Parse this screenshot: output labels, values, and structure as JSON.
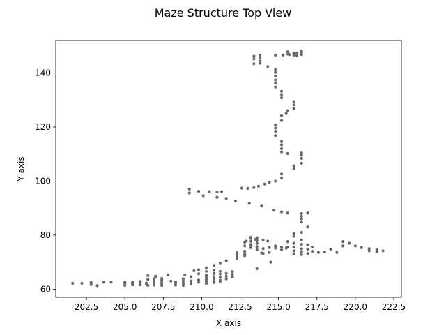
{
  "chart_data": {
    "type": "scatter",
    "title": "Maze Structure Top View",
    "xlabel": "X axis",
    "ylabel": "Y axis",
    "xlim": [
      200.5,
      223.0
    ],
    "ylim": [
      57.0,
      152.0
    ],
    "xticks": [
      202.5,
      205.0,
      207.5,
      210.0,
      212.5,
      215.0,
      217.5,
      220.0,
      222.5
    ],
    "xtick_labels": [
      "202.5",
      "205.0",
      "207.5",
      "210.0",
      "212.5",
      "215.0",
      "217.5",
      "220.0",
      "222.5"
    ],
    "yticks": [
      60,
      80,
      100,
      120,
      140
    ],
    "ytick_labels": [
      "60",
      "80",
      "100",
      "120",
      "140"
    ],
    "grid": false,
    "marker_color": "#666666",
    "series": [
      {
        "points": [
          [
            201.6,
            62.2
          ],
          [
            202.2,
            62.2
          ],
          [
            202.8,
            62.5
          ],
          [
            202.8,
            61.7
          ],
          [
            203.2,
            61.3
          ],
          [
            203.6,
            62.6
          ],
          [
            204.1,
            62.6
          ],
          [
            205.0,
            62.6
          ],
          [
            205.0,
            61.4
          ],
          [
            205.5,
            62.6
          ],
          [
            205.5,
            61.6
          ],
          [
            206.0,
            62.8
          ],
          [
            206.0,
            61.6
          ],
          [
            206.4,
            61.8
          ],
          [
            206.4,
            62.3
          ],
          [
            206.9,
            63.0
          ],
          [
            206.9,
            62.2
          ],
          [
            206.9,
            61.5
          ],
          [
            207.4,
            63.0
          ],
          [
            207.4,
            62.1
          ],
          [
            207.4,
            61.4
          ],
          [
            208.0,
            63.0
          ],
          [
            208.3,
            62.7
          ],
          [
            208.3,
            61.5
          ],
          [
            208.8,
            63.0
          ],
          [
            208.8,
            62.1
          ],
          [
            208.8,
            61.4
          ],
          [
            209.3,
            63.0
          ],
          [
            209.3,
            62.0
          ],
          [
            209.8,
            63.4
          ],
          [
            209.8,
            62.6
          ],
          [
            210.3,
            63.7
          ],
          [
            210.3,
            62.9
          ],
          [
            210.3,
            62.2
          ],
          [
            205.0,
            62.2
          ],
          [
            205.5,
            62.2
          ],
          [
            206.0,
            62.2
          ],
          [
            206.5,
            61.4
          ],
          [
            206.5,
            63.6
          ],
          [
            206.9,
            63.8
          ],
          [
            207.0,
            64.5
          ],
          [
            207.4,
            64.0
          ],
          [
            207.4,
            63.4
          ],
          [
            207.8,
            65.3
          ],
          [
            208.3,
            62.2
          ],
          [
            208.8,
            63.8
          ],
          [
            209.3,
            62.7
          ],
          [
            206.5,
            65.0
          ],
          [
            207.0,
            64.8
          ],
          [
            208.9,
            65.3
          ],
          [
            209.3,
            64.6
          ],
          [
            209.5,
            66.8
          ],
          [
            209.8,
            67.2
          ],
          [
            209.8,
            65.7
          ],
          [
            210.3,
            67.9
          ],
          [
            210.3,
            66.6
          ],
          [
            210.3,
            65.2
          ],
          [
            210.8,
            68.8
          ],
          [
            210.8,
            67.0
          ],
          [
            210.8,
            65.8
          ],
          [
            210.8,
            64.6
          ],
          [
            210.8,
            63.5
          ],
          [
            211.2,
            69.7
          ],
          [
            211.2,
            66.6
          ],
          [
            211.2,
            65.6
          ],
          [
            211.2,
            64.4
          ],
          [
            211.2,
            63.3
          ],
          [
            211.6,
            70.5
          ],
          [
            211.6,
            65.8
          ],
          [
            211.6,
            64.8
          ],
          [
            212.0,
            66.5
          ],
          [
            212.0,
            65.5
          ],
          [
            212.0,
            64.5
          ],
          [
            210.3,
            64.5
          ],
          [
            210.3,
            63.6
          ],
          [
            210.8,
            62.5
          ],
          [
            211.2,
            62.8
          ],
          [
            211.6,
            63.8
          ],
          [
            212.3,
            71.4
          ],
          [
            212.3,
            72.6
          ],
          [
            212.3,
            73.5
          ],
          [
            212.8,
            76.0
          ],
          [
            212.8,
            77.4
          ],
          [
            212.8,
            74.0
          ],
          [
            212.8,
            73.0
          ],
          [
            213.2,
            76.5
          ],
          [
            213.2,
            77.7
          ],
          [
            213.2,
            78.8
          ],
          [
            213.2,
            75.4
          ],
          [
            213.6,
            77.0
          ],
          [
            213.6,
            78.0
          ],
          [
            213.6,
            79.0
          ],
          [
            213.6,
            75.8
          ],
          [
            213.6,
            74.6
          ],
          [
            214.0,
            75.0
          ],
          [
            214.0,
            73.2
          ],
          [
            214.4,
            75.4
          ],
          [
            214.4,
            73.6
          ],
          [
            214.8,
            76.0
          ],
          [
            214.8,
            75.2
          ],
          [
            215.2,
            75.6
          ],
          [
            215.2,
            74.6
          ],
          [
            215.5,
            75.2
          ],
          [
            216.0,
            77.0
          ],
          [
            216.0,
            75.6
          ],
          [
            216.0,
            74.2
          ],
          [
            216.0,
            73.0
          ],
          [
            216.5,
            78.2
          ],
          [
            216.5,
            76.6
          ],
          [
            216.5,
            74.9
          ],
          [
            216.5,
            73.8
          ],
          [
            216.5,
            72.8
          ],
          [
            216.9,
            76.4
          ],
          [
            216.9,
            74.8
          ],
          [
            216.9,
            73.2
          ],
          [
            217.2,
            75.6
          ],
          [
            217.2,
            74.0
          ],
          [
            217.6,
            73.6
          ],
          [
            218.0,
            73.8
          ],
          [
            218.4,
            74.8
          ],
          [
            218.8,
            73.6
          ],
          [
            219.2,
            77.6
          ],
          [
            219.2,
            76.0
          ],
          [
            219.6,
            77.0
          ],
          [
            220.0,
            76.0
          ],
          [
            220.4,
            75.4
          ],
          [
            220.9,
            75.0
          ],
          [
            220.9,
            74.2
          ],
          [
            221.4,
            74.6
          ],
          [
            221.4,
            73.9
          ],
          [
            221.8,
            74.2
          ],
          [
            213.9,
            73.4
          ],
          [
            214.5,
            70.0
          ],
          [
            213.6,
            67.6
          ],
          [
            215.6,
            75.6
          ],
          [
            215.6,
            77.6
          ],
          [
            216.0,
            80.6
          ],
          [
            216.0,
            79.6
          ],
          [
            216.5,
            81.0
          ],
          [
            212.8,
            72.4
          ],
          [
            212.3,
            71.8
          ],
          [
            212.9,
            77.8
          ],
          [
            213.2,
            79.2
          ],
          [
            213.5,
            78.4
          ],
          [
            214.0,
            78.2
          ],
          [
            214.3,
            77.8
          ],
          [
            216.5,
            86.0
          ],
          [
            216.5,
            87.0
          ],
          [
            216.5,
            88.0
          ],
          [
            216.5,
            84.8
          ],
          [
            216.9,
            88.2
          ],
          [
            216.9,
            83.0
          ],
          [
            209.2,
            97.0
          ],
          [
            209.2,
            95.6
          ],
          [
            209.8,
            96.2
          ],
          [
            210.1,
            94.6
          ],
          [
            210.5,
            96.1
          ],
          [
            211.0,
            96.0
          ],
          [
            211.0,
            94.0
          ],
          [
            211.3,
            96.1
          ],
          [
            211.6,
            93.6
          ],
          [
            212.2,
            92.6
          ],
          [
            212.6,
            97.4
          ],
          [
            213.0,
            97.3
          ],
          [
            213.4,
            97.6
          ],
          [
            213.7,
            98.1
          ],
          [
            214.1,
            98.9
          ],
          [
            214.4,
            99.6
          ],
          [
            214.8,
            100.0
          ],
          [
            215.2,
            101.2
          ],
          [
            215.2,
            102.6
          ],
          [
            213.1,
            91.8
          ],
          [
            213.9,
            90.8
          ],
          [
            214.7,
            89.2
          ],
          [
            215.2,
            88.6
          ],
          [
            215.6,
            88.2
          ],
          [
            215.2,
            110.8
          ],
          [
            215.2,
            112.0
          ],
          [
            215.2,
            113.4
          ],
          [
            215.2,
            114.6
          ],
          [
            215.6,
            110.2
          ],
          [
            216.0,
            104.6
          ],
          [
            216.0,
            105.6
          ],
          [
            216.5,
            106.6
          ],
          [
            216.5,
            108.4
          ],
          [
            216.5,
            109.6
          ],
          [
            216.5,
            110.4
          ],
          [
            214.8,
            116.8
          ],
          [
            214.8,
            118.4
          ],
          [
            214.8,
            119.6
          ],
          [
            214.8,
            120.8
          ],
          [
            215.2,
            122.4
          ],
          [
            215.2,
            124.2
          ],
          [
            215.5,
            125.0
          ],
          [
            215.6,
            126.0
          ],
          [
            216.0,
            126.8
          ],
          [
            216.0,
            128.2
          ],
          [
            216.0,
            129.4
          ],
          [
            215.2,
            130.8
          ],
          [
            215.2,
            132.0
          ],
          [
            215.2,
            133.2
          ],
          [
            214.8,
            134.8
          ],
          [
            214.8,
            136.2
          ],
          [
            214.8,
            137.4
          ],
          [
            214.8,
            138.8
          ],
          [
            214.8,
            140.2
          ],
          [
            214.8,
            141.2
          ],
          [
            214.3,
            142.4
          ],
          [
            213.8,
            143.6
          ],
          [
            213.4,
            143.4
          ],
          [
            213.4,
            145.2
          ],
          [
            213.4,
            146.2
          ],
          [
            213.8,
            144.4
          ],
          [
            213.8,
            145.6
          ],
          [
            213.8,
            146.6
          ],
          [
            214.8,
            146.6
          ],
          [
            215.3,
            146.6
          ],
          [
            215.6,
            147.0
          ],
          [
            215.6,
            147.8
          ],
          [
            215.7,
            146.8
          ],
          [
            216.0,
            146.6
          ],
          [
            216.0,
            147.2
          ],
          [
            216.2,
            146.4
          ],
          [
            216.2,
            147.4
          ],
          [
            216.5,
            146.8
          ],
          [
            216.5,
            147.6
          ],
          [
            216.5,
            148.0
          ],
          [
            216.2,
            146.9
          ]
        ]
      }
    ]
  }
}
